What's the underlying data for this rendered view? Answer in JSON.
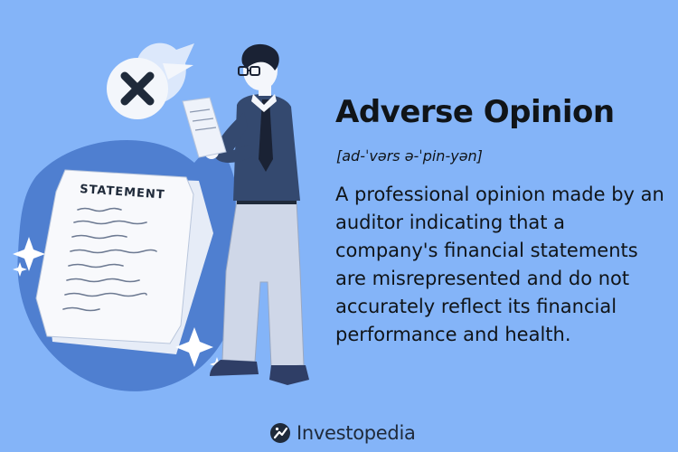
{
  "header": {
    "title": "Adverse Opinion",
    "pronunciation": "[ad-ˈvərs ə-ˈpin-yən]"
  },
  "definition": {
    "text": "A professional opinion made by an auditor indicating that a company's financial statements are misrepresented and do not accurately reflect its financial performance and health."
  },
  "illustration": {
    "document_heading": "STATEMENT",
    "bubble_icon": "x-mark-icon"
  },
  "brand": {
    "name": "Investopedia",
    "icon": "investopedia-logo-icon"
  },
  "colors": {
    "background": "#84b4f8",
    "blob": "#4f7fd0",
    "ink": "#1f2a3a"
  }
}
